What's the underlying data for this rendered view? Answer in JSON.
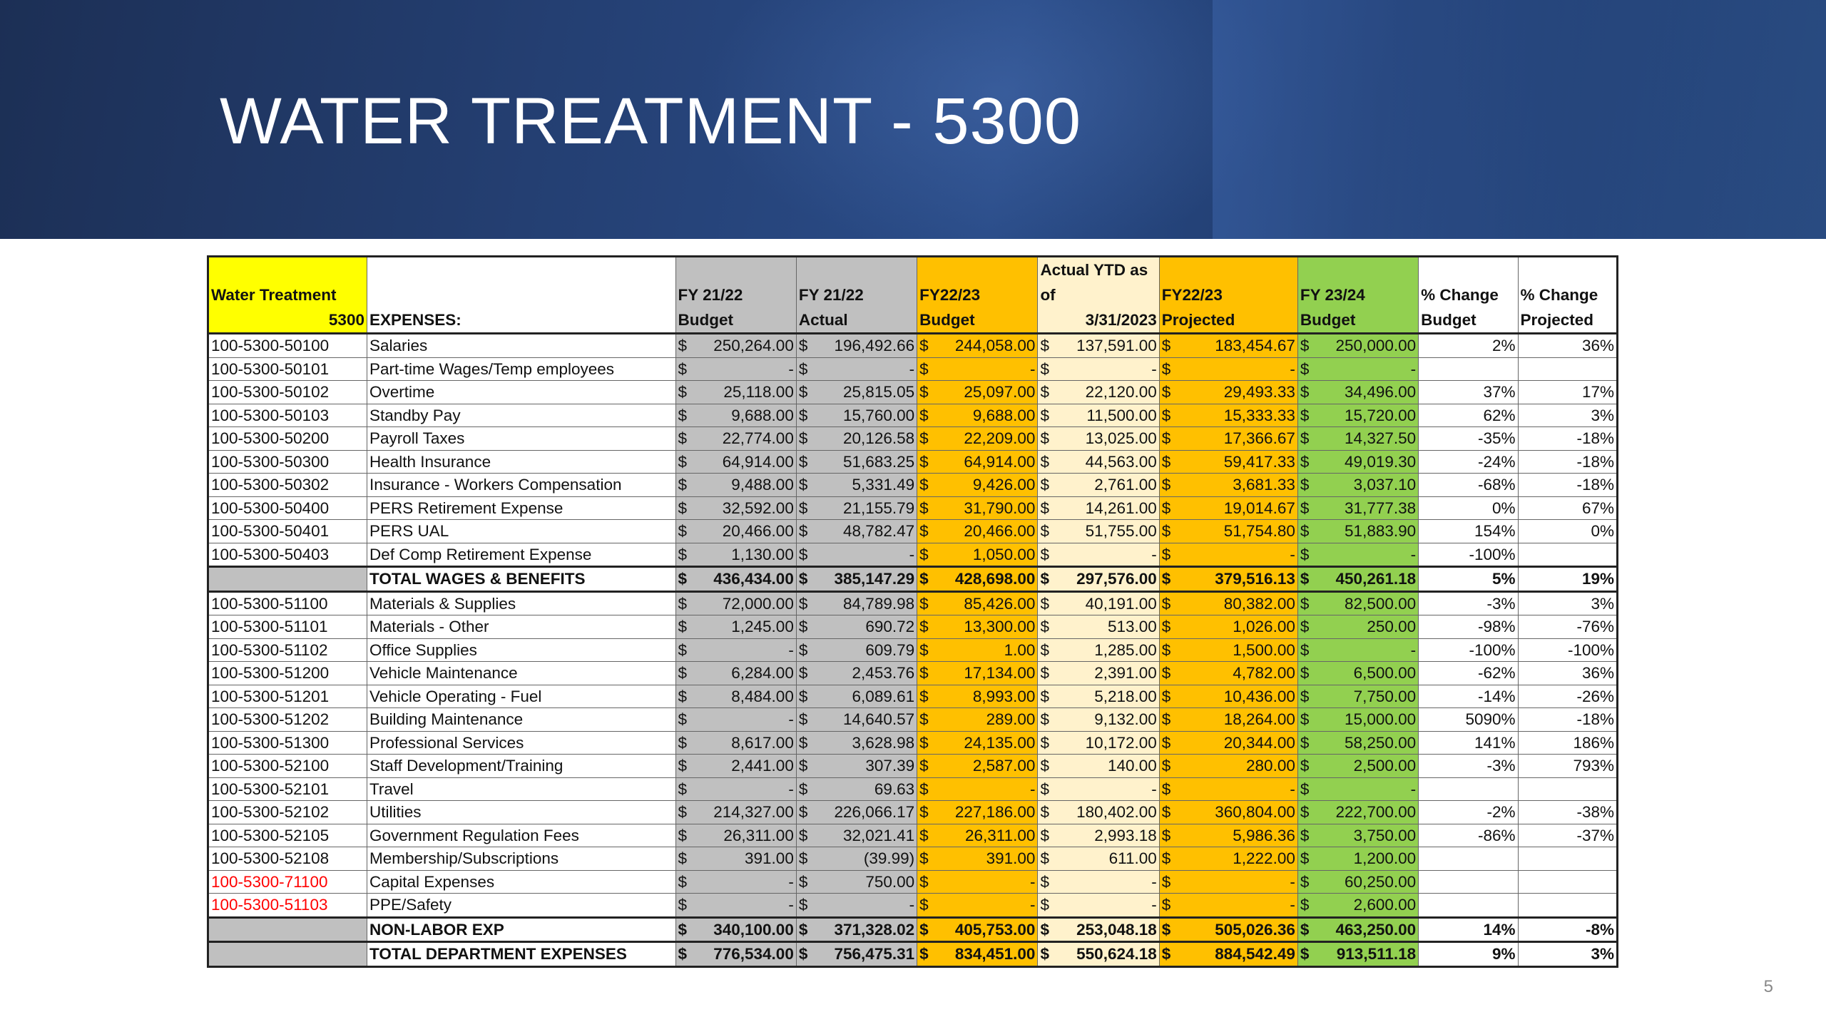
{
  "slide": {
    "title": "WATER TREATMENT - 5300",
    "page_number": "5"
  },
  "table": {
    "headers": {
      "acct_line1": "Water Treatment",
      "acct_line2": "5300",
      "desc": "EXPENSES:",
      "fy2122_budget_l1": "FY 21/22",
      "fy2122_budget_l2": "Budget",
      "fy2122_actual_l1": "FY 21/22",
      "fy2122_actual_l2": "Actual",
      "fy2223_budget_l1": "FY22/23",
      "fy2223_budget_l2": "Budget",
      "ytd_l1": "Actual YTD as",
      "ytd_l2": "of",
      "ytd_l3": "3/31/2023",
      "projected_l1": "FY22/23",
      "projected_l2": "Projected",
      "fy2324_l1": "FY 23/24",
      "fy2324_l2": "Budget",
      "pct_budget_l1": "% Change",
      "pct_budget_l2": "Budget",
      "pct_projected_l1": "% Change",
      "pct_projected_l2": "Projected"
    },
    "rows": [
      {
        "acct": "100-5300-50100",
        "desc": "Salaries",
        "b2122": "250,264.00",
        "a2122": "196,492.66",
        "b2223": "244,058.00",
        "ytd": "137,591.00",
        "proj": "183,454.67",
        "b2324": "250,000.00",
        "pcb": "2%",
        "pcp": "36%"
      },
      {
        "acct": "100-5300-50101",
        "desc": "Part-time Wages/Temp employees",
        "b2122": "-",
        "a2122": "-",
        "b2223": "-",
        "ytd": "-",
        "proj": "-",
        "b2324": "-",
        "pcb": "",
        "pcp": ""
      },
      {
        "acct": "100-5300-50102",
        "desc": "Overtime",
        "b2122": "25,118.00",
        "a2122": "25,815.05",
        "b2223": "25,097.00",
        "ytd": "22,120.00",
        "proj": "29,493.33",
        "b2324": "34,496.00",
        "pcb": "37%",
        "pcp": "17%"
      },
      {
        "acct": "100-5300-50103",
        "desc": "Standby Pay",
        "b2122": "9,688.00",
        "a2122": "15,760.00",
        "b2223": "9,688.00",
        "ytd": "11,500.00",
        "proj": "15,333.33",
        "b2324": "15,720.00",
        "pcb": "62%",
        "pcp": "3%"
      },
      {
        "acct": "100-5300-50200",
        "desc": "Payroll Taxes",
        "b2122": "22,774.00",
        "a2122": "20,126.58",
        "b2223": "22,209.00",
        "ytd": "13,025.00",
        "proj": "17,366.67",
        "b2324": "14,327.50",
        "pcb": "-35%",
        "pcp": "-18%"
      },
      {
        "acct": "100-5300-50300",
        "desc": "Health Insurance",
        "b2122": "64,914.00",
        "a2122": "51,683.25",
        "b2223": "64,914.00",
        "ytd": "44,563.00",
        "proj": "59,417.33",
        "b2324": "49,019.30",
        "pcb": "-24%",
        "pcp": "-18%"
      },
      {
        "acct": "100-5300-50302",
        "desc": "Insurance - Workers Compensation",
        "b2122": "9,488.00",
        "a2122": "5,331.49",
        "b2223": "9,426.00",
        "ytd": "2,761.00",
        "proj": "3,681.33",
        "b2324": "3,037.10",
        "pcb": "-68%",
        "pcp": "-18%"
      },
      {
        "acct": "100-5300-50400",
        "desc": "PERS Retirement Expense",
        "b2122": "32,592.00",
        "a2122": "21,155.79",
        "b2223": "31,790.00",
        "ytd": "14,261.00",
        "proj": "19,014.67",
        "b2324": "31,777.38",
        "pcb": "0%",
        "pcp": "67%"
      },
      {
        "acct": "100-5300-50401",
        "desc": "PERS UAL",
        "b2122": "20,466.00",
        "a2122": "48,782.47",
        "b2223": "20,466.00",
        "ytd": "51,755.00",
        "proj": "51,754.80",
        "b2324": "51,883.90",
        "pcb": "154%",
        "pcp": "0%"
      },
      {
        "acct": "100-5300-50403",
        "desc": "Def Comp Retirement Expense",
        "b2122": "1,130.00",
        "a2122": "-",
        "b2223": "1,050.00",
        "ytd": "-",
        "proj": "-",
        "b2324": "-",
        "pcb": "-100%",
        "pcp": ""
      }
    ],
    "total_wages": {
      "desc": "TOTAL WAGES & BENEFITS",
      "b2122": "$ 436,434.00",
      "a2122": "385,147.29",
      "b2223": "$ 428,698.00",
      "ytd": "$ 297,576.00",
      "proj": "379,516.13",
      "b2324": "$ 450,261.18",
      "pcb": "5%",
      "pcp": "19%"
    },
    "rows2": [
      {
        "acct": "100-5300-51100",
        "desc": "Materials & Supplies",
        "b2122": "72,000.00",
        "a2122": "84,789.98",
        "b2223": "85,426.00",
        "ytd": "40,191.00",
        "proj": "80,382.00",
        "b2324": "82,500.00",
        "pcb": "-3%",
        "pcp": "3%",
        "red": false
      },
      {
        "acct": "100-5300-51101",
        "desc": "Materials - Other",
        "b2122": "1,245.00",
        "a2122": "690.72",
        "b2223": "13,300.00",
        "ytd": "513.00",
        "proj": "1,026.00",
        "b2324": "250.00",
        "pcb": "-98%",
        "pcp": "-76%",
        "red": false
      },
      {
        "acct": "100-5300-51102",
        "desc": "Office Supplies",
        "b2122": "-",
        "a2122": "609.79",
        "b2223": "1.00",
        "ytd": "1,285.00",
        "proj": "1,500.00",
        "b2324": "-",
        "pcb": "-100%",
        "pcp": "-100%",
        "red": false
      },
      {
        "acct": "100-5300-51200",
        "desc": "Vehicle Maintenance",
        "b2122": "6,284.00",
        "a2122": "2,453.76",
        "b2223": "17,134.00",
        "ytd": "2,391.00",
        "proj": "4,782.00",
        "b2324": "6,500.00",
        "pcb": "-62%",
        "pcp": "36%",
        "red": false
      },
      {
        "acct": "100-5300-51201",
        "desc": "Vehicle Operating - Fuel",
        "b2122": "8,484.00",
        "a2122": "6,089.61",
        "b2223": "8,993.00",
        "ytd": "5,218.00",
        "proj": "10,436.00",
        "b2324": "7,750.00",
        "pcb": "-14%",
        "pcp": "-26%",
        "red": false
      },
      {
        "acct": "100-5300-51202",
        "desc": "Building Maintenance",
        "b2122": "-",
        "a2122": "14,640.57",
        "b2223": "289.00",
        "ytd": "9,132.00",
        "proj": "18,264.00",
        "b2324": "15,000.00",
        "pcb": "5090%",
        "pcp": "-18%",
        "red": false
      },
      {
        "acct": "100-5300-51300",
        "desc": "Professional Services",
        "b2122": "8,617.00",
        "a2122": "3,628.98",
        "b2223": "24,135.00",
        "ytd": "10,172.00",
        "proj": "20,344.00",
        "b2324": "58,250.00",
        "pcb": "141%",
        "pcp": "186%",
        "red": false
      },
      {
        "acct": "100-5300-52100",
        "desc": "Staff Development/Training",
        "b2122": "2,441.00",
        "a2122": "307.39",
        "b2223": "2,587.00",
        "ytd": "140.00",
        "proj": "280.00",
        "b2324": "2,500.00",
        "pcb": "-3%",
        "pcp": "793%",
        "red": false
      },
      {
        "acct": "100-5300-52101",
        "desc": "Travel",
        "b2122": "-",
        "a2122": "69.63",
        "b2223": "-",
        "ytd": "-",
        "proj": "-",
        "b2324": "-",
        "pcb": "",
        "pcp": "",
        "red": false
      },
      {
        "acct": "100-5300-52102",
        "desc": "Utilities",
        "b2122": "$ 214,327.00",
        "a2122": "226,066.17",
        "b2223": "$ 227,186.00",
        "ytd": "$ 180,402.00",
        "proj": "360,804.00",
        "b2324": "$ 222,700.00",
        "pcb": "-2%",
        "pcp": "-38%",
        "red": false
      },
      {
        "acct": "100-5300-52105",
        "desc": "Government Regulation Fees",
        "b2122": "26,311.00",
        "a2122": "32,021.41",
        "b2223": "26,311.00",
        "ytd": "2,993.18",
        "proj": "5,986.36",
        "b2324": "3,750.00",
        "pcb": "-86%",
        "pcp": "-37%",
        "red": false
      },
      {
        "acct": "100-5300-52108",
        "desc": "Membership/Subscriptions",
        "b2122": "391.00",
        "a2122": "(39.99)",
        "b2223": "391.00",
        "ytd": "611.00",
        "proj": "1,222.00",
        "b2324": "1,200.00",
        "pcb": "",
        "pcp": "",
        "red": false
      },
      {
        "acct": "100-5300-71100",
        "desc": "Capital Expenses",
        "b2122": "-",
        "a2122": "750.00",
        "b2223": "-",
        "ytd": "-",
        "proj": "-",
        "b2324": "60,250.00",
        "pcb": "",
        "pcp": "",
        "red": true
      },
      {
        "acct": "100-5300-51103",
        "desc": "PPE/Safety",
        "b2122": "-",
        "a2122": "-",
        "b2223": "-",
        "ytd": "-",
        "proj": "-",
        "b2324": "2,600.00",
        "pcb": "",
        "pcp": "",
        "red": true
      }
    ],
    "non_labor": {
      "desc": "NON-LABOR EXP",
      "b2122": "$ 340,100.00",
      "a2122": "371,328.02",
      "b2223": "$ 405,753.00",
      "ytd": "$ 253,048.18",
      "proj": "505,026.36",
      "b2324": "$ 463,250.00",
      "pcb": "14%",
      "pcp": "-8%"
    },
    "total_dept": {
      "desc": "TOTAL DEPARTMENT EXPENSES",
      "b2122": "$ 776,534.00",
      "a2122": "756,475.31",
      "b2223": "$ 834,451.00",
      "ytd": "$ 550,624.18",
      "proj": "884,542.49",
      "b2324": "$ 913,511.18",
      "pcb": "9%",
      "pcp": "3%"
    },
    "currency_symbol": "$"
  },
  "colors": {
    "header_acct": "#ffff00",
    "fy2122": "#c0c0c0",
    "fy2223_budget": "#ffc000",
    "ytd": "#fff2cc",
    "projected": "#ffc000",
    "fy2324": "#92d050",
    "red_account": "#ff0000"
  }
}
